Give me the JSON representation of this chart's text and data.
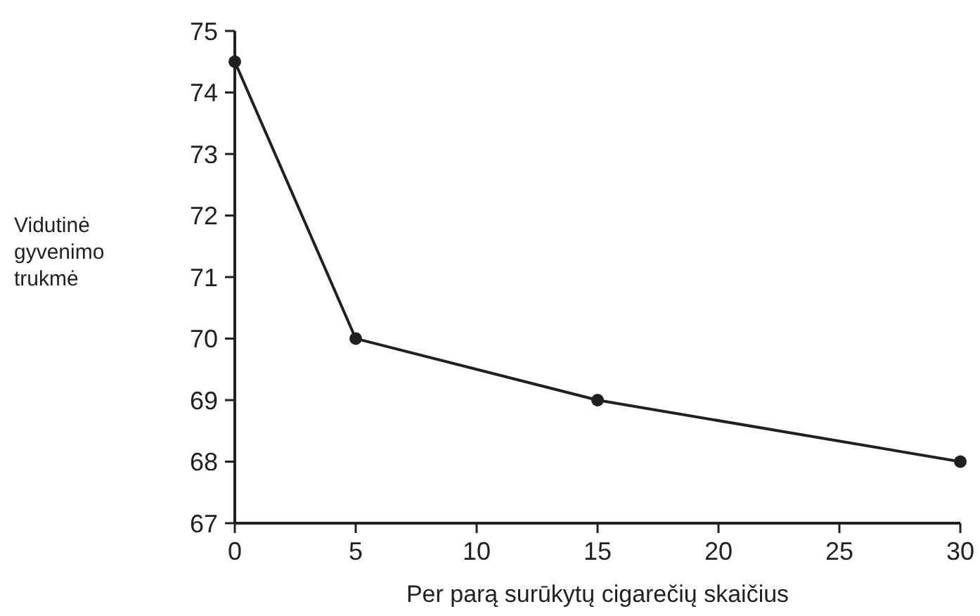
{
  "chart_data": {
    "type": "line",
    "xlabel": "Per parą surūkytų cigarečių skaičius",
    "ylabel": "Vidutinė gyvenimo trukmė",
    "x": [
      0,
      5,
      15,
      30
    ],
    "series": [
      {
        "color": "#231f20",
        "values": [
          74.5,
          70,
          69,
          68
        ]
      }
    ],
    "xlim": [
      0,
      30
    ],
    "xticks": [
      0,
      5,
      10,
      15,
      20,
      25,
      30
    ],
    "ylim": [
      67,
      75
    ],
    "yticks": [
      67,
      68,
      69,
      70,
      71,
      72,
      73,
      74,
      75
    ],
    "marker": "circle",
    "line_style": "solid"
  }
}
